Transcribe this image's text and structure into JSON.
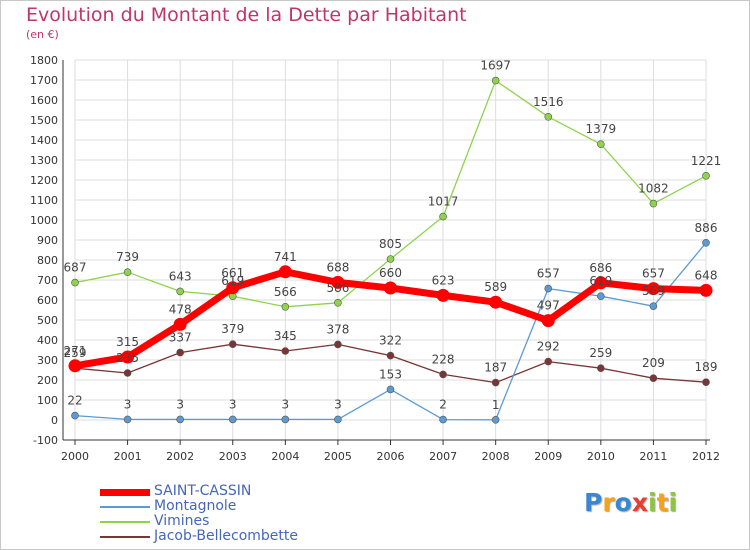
{
  "header": {
    "title": "Evolution du Montant de la Dette par Habitant",
    "subtitle": "(en €)"
  },
  "logo": {
    "letters": [
      "P",
      "r",
      "o",
      "x",
      "i",
      "t",
      "i"
    ],
    "colors": [
      "#3a86d1",
      "#f7a21b",
      "#3a86d1",
      "#e53f2f",
      "#8cc63e",
      "#f7a21b",
      "#8cc63e"
    ]
  },
  "colors": {
    "grid": "#dddddd",
    "axis": "#333333",
    "tick_text": "#333333",
    "label_text": "#444444"
  },
  "chart_data": {
    "type": "line",
    "x": [
      "2000",
      "2001",
      "2002",
      "2003",
      "2004",
      "2005",
      "2006",
      "2007",
      "2008",
      "2009",
      "2010",
      "2011",
      "2012"
    ],
    "ylim": [
      -100,
      1800
    ],
    "yticks": [
      -100,
      0,
      100,
      200,
      300,
      400,
      500,
      600,
      700,
      800,
      900,
      1000,
      1100,
      1200,
      1300,
      1400,
      1500,
      1600,
      1700,
      1800
    ],
    "grid": true,
    "legend": "bottom-left",
    "series": [
      {
        "name": "SAINT-CASSIN",
        "color": "#ff0000",
        "values": [
          271,
          315,
          478,
          661,
          741,
          688,
          660,
          623,
          589,
          497,
          686,
          657,
          648
        ],
        "labels": [
          "271",
          "315",
          "478",
          "661",
          "741",
          "688",
          "660",
          "623",
          "589",
          "497",
          "686",
          "657",
          "648"
        ]
      },
      {
        "name": "Montagnole",
        "color": "#5b9bd5",
        "values": [
          22,
          3,
          3,
          3,
          3,
          3,
          153,
          2,
          1,
          657,
          619,
          569,
          886
        ],
        "labels": [
          "22",
          "3",
          "3",
          "3",
          "3",
          "3",
          "153",
          "2",
          "1",
          "657",
          "619",
          "569",
          "886"
        ]
      },
      {
        "name": "Vimines",
        "color": "#8fd34d",
        "values": [
          687,
          739,
          643,
          619,
          566,
          586,
          805,
          1017,
          1697,
          1516,
          1379,
          1082,
          1221
        ],
        "labels": [
          "687",
          "739",
          "643",
          "619",
          "566",
          "586",
          "805",
          "1017",
          "1697",
          "1516",
          "1379",
          "1082",
          "1221"
        ]
      },
      {
        "name": "Jacob-Bellecombette",
        "color": "#7a3535",
        "values": [
          259,
          235,
          337,
          379,
          345,
          378,
          322,
          228,
          187,
          292,
          259,
          209,
          189
        ],
        "labels": [
          "259",
          "235",
          "337",
          "379",
          "345",
          "378",
          "322",
          "228",
          "187",
          "292",
          "259",
          "209",
          "189"
        ]
      }
    ]
  }
}
